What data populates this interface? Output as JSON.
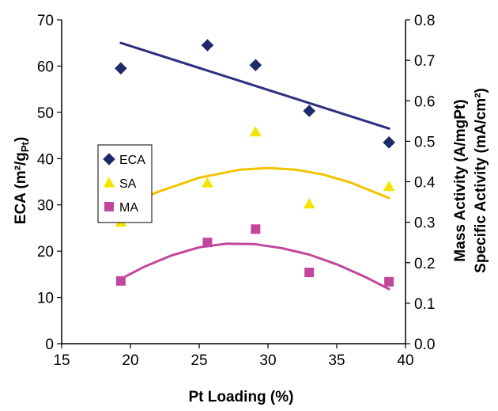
{
  "chart_data": {
    "type": "scatter",
    "x_axis": {
      "label": "Pt Loading (%)",
      "range": [
        15,
        40
      ],
      "ticks": [
        15,
        20,
        25,
        30,
        35,
        40
      ]
    },
    "y_axis_left": {
      "label": "ECA (m²/gPt)",
      "range": [
        0,
        70
      ],
      "ticks": [
        0,
        10,
        20,
        30,
        40,
        50,
        60,
        70
      ]
    },
    "y_axis_right": {
      "labels": [
        "Mass Activity (A/mgPt)",
        "Specific Activity (mA/cm²)"
      ],
      "range": [
        0.0,
        0.8
      ],
      "ticks": [
        "0.0",
        "0.1",
        "0.2",
        "0.3",
        "0.4",
        "0.5",
        "0.6",
        "0.7",
        "0.8"
      ]
    },
    "grid": false,
    "legend_position": "center-left",
    "series": [
      {
        "name": "ECA",
        "axis": "left",
        "marker": "diamond",
        "color": "#1f2a6b",
        "x": [
          19.3,
          25.6,
          29.1,
          33.0,
          38.8
        ],
        "y": [
          59.5,
          64.5,
          60.2,
          50.3,
          43.5
        ],
        "trend": {
          "type": "linear",
          "color": "#2e2f7f",
          "x": [
            19.3,
            38.8
          ],
          "y": [
            65.0,
            46.5
          ]
        }
      },
      {
        "name": "SA",
        "axis": "right",
        "marker": "triangle",
        "color": "#f6e400",
        "x": [
          19.3,
          25.6,
          29.1,
          33.0,
          38.8
        ],
        "y": [
          0.3,
          0.397,
          0.523,
          0.345,
          0.388
        ],
        "trend": {
          "type": "polynomial",
          "color": "#f2c400",
          "x": [
            19.3,
            22.0,
            25.0,
            28.0,
            30.0,
            32.0,
            34.0,
            36.0,
            38.8
          ],
          "y": [
            0.335,
            0.375,
            0.41,
            0.43,
            0.434,
            0.43,
            0.418,
            0.398,
            0.36
          ]
        }
      },
      {
        "name": "MA",
        "axis": "right",
        "marker": "square",
        "color": "#c2479b",
        "x": [
          19.3,
          25.6,
          29.1,
          33.0,
          38.8
        ],
        "y": [
          0.155,
          0.25,
          0.283,
          0.176,
          0.153
        ],
        "trend": {
          "type": "polynomial",
          "color": "#c2479b",
          "x": [
            19.3,
            21.0,
            23.0,
            25.0,
            27.0,
            29.0,
            31.0,
            33.0,
            35.0,
            37.0,
            38.8
          ],
          "y": [
            0.16,
            0.19,
            0.218,
            0.238,
            0.247,
            0.246,
            0.236,
            0.22,
            0.196,
            0.166,
            0.135
          ]
        }
      }
    ]
  }
}
